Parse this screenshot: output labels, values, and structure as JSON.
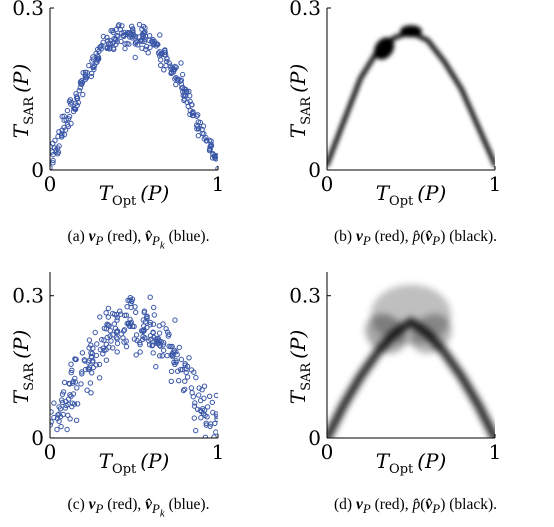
{
  "chart_data": [
    {
      "panel": "a",
      "type": "scatter",
      "xlabel": "T_Opt (P)",
      "ylabel": "T_SAR (P)",
      "xlim": [
        0,
        1
      ],
      "ylim": [
        0,
        0.3
      ],
      "xticks": [
        "0",
        "1"
      ],
      "yticks": [
        "0",
        "0.3"
      ],
      "marker_color": "#3b57a8",
      "points_note": "approx. 300 open circles along a concave arc",
      "curve_x": [
        0,
        0.1,
        0.2,
        0.3,
        0.4,
        0.5,
        0.6,
        0.7,
        0.8,
        0.9,
        1.0
      ],
      "curve_y": [
        0.01,
        0.09,
        0.17,
        0.22,
        0.25,
        0.255,
        0.24,
        0.2,
        0.15,
        0.08,
        0.01
      ],
      "noise": 0.012,
      "caption": "(a) v_P (red), v̂_{P_k} (blue)."
    },
    {
      "panel": "b",
      "type": "heatmap",
      "xlabel": "T_Opt (P)",
      "ylabel": "T_SAR (P)",
      "xlim": [
        0,
        1
      ],
      "ylim": [
        0,
        0.3
      ],
      "xticks": [
        "0",
        "1"
      ],
      "yticks": [
        "0",
        "0.3"
      ],
      "density_color": "#000000",
      "curve_x": [
        0,
        0.1,
        0.2,
        0.3,
        0.4,
        0.5,
        0.6,
        0.7,
        0.8,
        0.9,
        1.0
      ],
      "curve_y": [
        0.01,
        0.09,
        0.17,
        0.22,
        0.245,
        0.255,
        0.24,
        0.2,
        0.15,
        0.08,
        0.01
      ],
      "caption": "(b) v_P (red), p̂(v̂_P) (black)."
    },
    {
      "panel": "c",
      "type": "scatter",
      "xlabel": "T_Opt (P)",
      "ylabel": "T_SAR (P)",
      "xlim": [
        0,
        1
      ],
      "ylim": [
        0,
        0.35
      ],
      "xticks": [
        "0",
        "1"
      ],
      "yticks": [
        "0",
        "0.3"
      ],
      "marker_color": "#3b57a8",
      "points_note": "approx. 300 open circles, wider spread",
      "curve_x": [
        0,
        0.1,
        0.2,
        0.3,
        0.4,
        0.5,
        0.6,
        0.7,
        0.8,
        0.9,
        1.0
      ],
      "curve_y": [
        0.02,
        0.08,
        0.14,
        0.19,
        0.23,
        0.245,
        0.23,
        0.19,
        0.14,
        0.08,
        0.02
      ],
      "noise": 0.03,
      "caption": "(c) v_P (red), v̂_{P_k} (blue)."
    },
    {
      "panel": "d",
      "type": "heatmap",
      "xlabel": "T_Opt (P)",
      "ylabel": "T_SAR (P)",
      "xlim": [
        0,
        1
      ],
      "ylim": [
        0,
        0.35
      ],
      "xticks": [
        "0",
        "1"
      ],
      "yticks": [
        "0",
        "0.3"
      ],
      "density_color": "#000000",
      "curve_x": [
        0,
        0.1,
        0.2,
        0.3,
        0.4,
        0.5,
        0.6,
        0.7,
        0.8,
        0.9,
        1.0
      ],
      "curve_y": [
        0.0,
        0.07,
        0.13,
        0.18,
        0.22,
        0.245,
        0.22,
        0.18,
        0.13,
        0.07,
        0.0
      ],
      "caption": "(d) v_P (red), p̂(v̂_P) (black)."
    }
  ],
  "captions": {
    "a": {
      "label": "(a)",
      "v": "v",
      "v_sub": "P",
      "red": "(red),",
      "vhat": "v̂",
      "vhat_sub": "P",
      "vhat_subsub": "k",
      "blue": "(blue)."
    },
    "b": {
      "label": "(b)",
      "v": "v",
      "v_sub": "P",
      "red": "(red),",
      "phat": "p̂",
      "vhat": "v̂",
      "vhat_sub": "P",
      "black": "(black)."
    },
    "c": {
      "label": "(c)",
      "v": "v",
      "v_sub": "P",
      "red": "(red),",
      "vhat": "v̂",
      "vhat_sub": "P",
      "vhat_subsub": "k",
      "blue": "(blue)."
    },
    "d": {
      "label": "(d)",
      "v": "v",
      "v_sub": "P",
      "red": "(red),",
      "phat": "p̂",
      "vhat": "v̂",
      "vhat_sub": "P",
      "black": "(black)."
    }
  },
  "axis_text": {
    "xlab_T": "T",
    "xlab_sub": "Opt",
    "xlab_arg": "(P)",
    "ylab_T": "T",
    "ylab_sub": "SAR",
    "ylab_arg": "(P)"
  }
}
